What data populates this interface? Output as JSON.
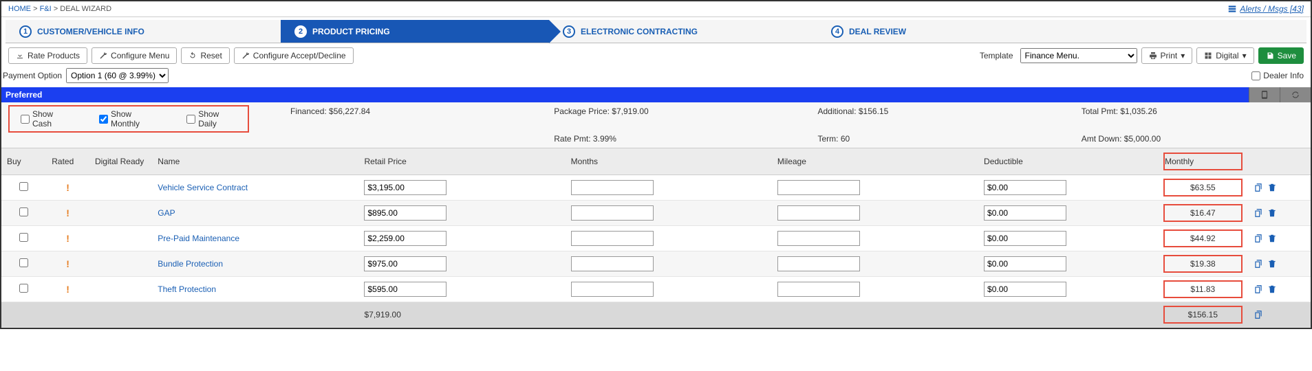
{
  "breadcrumb": {
    "home": "HOME",
    "fni": "F&I",
    "deal": "DEAL WIZARD",
    "sep": ">"
  },
  "alerts": {
    "label": "Alerts / Msgs [43]"
  },
  "steps": {
    "s1": {
      "num": "1",
      "label": "CUSTOMER/VEHICLE INFO"
    },
    "s2": {
      "num": "2",
      "label": "PRODUCT PRICING"
    },
    "s3": {
      "num": "3",
      "label": "ELECTRONIC CONTRACTING"
    },
    "s4": {
      "num": "4",
      "label": "DEAL REVIEW"
    }
  },
  "toolbar": {
    "rate": "Rate Products",
    "config_menu": "Configure Menu",
    "reset": "Reset",
    "config_accept": "Configure Accept/Decline",
    "template_label": "Template",
    "template_value": "Finance Menu.",
    "print": "Print",
    "digital": "Digital",
    "save": "Save"
  },
  "payopt": {
    "label": "Payment Option",
    "value": "Option 1 (60 @ 3.99%)",
    "dealer_info": "Dealer Info"
  },
  "preferred": {
    "label": "Preferred"
  },
  "show": {
    "cash": "Show Cash",
    "monthly": "Show Monthly",
    "daily": "Show Daily"
  },
  "summary": {
    "financed": "Financed: $56,227.84",
    "package": "Package Price: $7,919.00",
    "additional": "Additional: $156.15",
    "total": "Total Pmt: $1,035.26",
    "rate": "Rate Pmt: 3.99%",
    "term": "Term: 60",
    "amtdown": "Amt Down: $5,000.00"
  },
  "headers": {
    "buy": "Buy",
    "rated": "Rated",
    "digital": "Digital Ready",
    "name": "Name",
    "retail": "Retail Price",
    "months": "Months",
    "mileage": "Mileage",
    "deductible": "Deductible",
    "monthly": "Monthly"
  },
  "rows": [
    {
      "name": "Vehicle Service Contract",
      "price": "$3,195.00",
      "deductible": "$0.00",
      "monthly": "$63.55"
    },
    {
      "name": "GAP",
      "price": "$895.00",
      "deductible": "$0.00",
      "monthly": "$16.47"
    },
    {
      "name": "Pre-Paid Maintenance",
      "price": "$2,259.00",
      "deductible": "$0.00",
      "monthly": "$44.92"
    },
    {
      "name": "Bundle Protection",
      "price": "$975.00",
      "deductible": "$0.00",
      "monthly": "$19.38"
    },
    {
      "name": "Theft Protection",
      "price": "$595.00",
      "deductible": "$0.00",
      "monthly": "$11.83"
    }
  ],
  "totals": {
    "price": "$7,919.00",
    "monthly": "$156.15"
  }
}
